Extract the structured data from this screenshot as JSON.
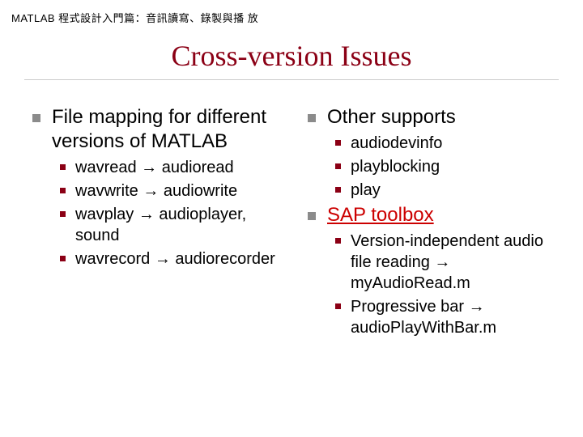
{
  "header": "MATLAB 程式設計入門篇：音訊讀寫、錄製與播 放",
  "title": "Cross-version Issues",
  "colors": {
    "title_color": "#8b0015",
    "lvl1_bullet": "#8b8b8b",
    "lvl2_bullet": "#8b0015",
    "link_color": "#cc0000",
    "text_color": "#000000",
    "background": "#ffffff",
    "underline": "#cccccc"
  },
  "typography": {
    "header_fontsize": 13,
    "title_fontsize": 36,
    "lvl1_fontsize": 24,
    "lvl2_fontsize": 20
  },
  "left": {
    "item1": "File mapping for different versions of MATLAB",
    "sub1": "wavread → audioread",
    "sub2": "wavwrite → audiowrite",
    "sub3": "wavplay → audioplayer, sound",
    "sub4": "wavrecord → audiorecorder"
  },
  "right": {
    "item1": "Other supports",
    "sub1": "audiodevinfo",
    "sub2": "playblocking",
    "sub3": "play",
    "item2": "SAP toolbox",
    "sub4": "Version-independent audio file reading → myAudioRead.m",
    "sub5": "Progressive bar → audioPlayWithBar.m"
  }
}
